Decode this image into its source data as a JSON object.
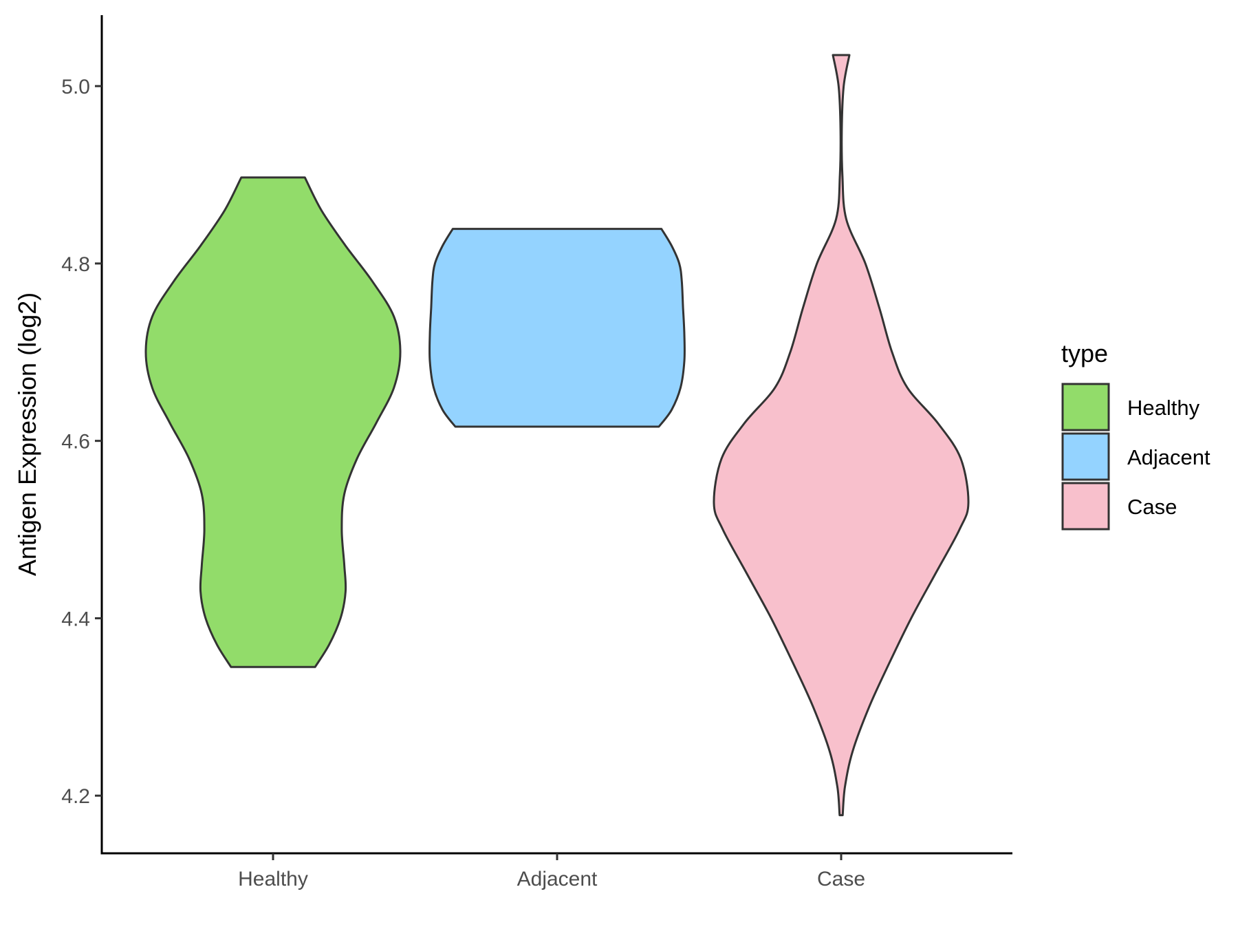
{
  "chart_data": {
    "type": "violin",
    "ylabel": "Antigen Expression (log2)",
    "xlabel": "",
    "categories": [
      "Healthy",
      "Adjacent",
      "Case"
    ],
    "ylim": [
      4.135,
      5.08
    ],
    "yticks": [
      "4.2",
      "4.4",
      "4.6",
      "4.8",
      "5.0"
    ],
    "legend": {
      "title": "type",
      "position": "right",
      "entries": [
        {
          "label": "Healthy",
          "color": "#92dc6a"
        },
        {
          "label": "Adjacent",
          "color": "#94d3ff"
        },
        {
          "label": "Case",
          "color": "#f8c0cc"
        }
      ]
    },
    "series": [
      {
        "category": "Healthy",
        "color": "#92dc6a",
        "min": 4.345,
        "max": 4.897,
        "profile": [
          [
            4.345,
            0.33
          ],
          [
            4.37,
            0.44
          ],
          [
            4.4,
            0.53
          ],
          [
            4.43,
            0.57
          ],
          [
            4.46,
            0.56
          ],
          [
            4.5,
            0.54
          ],
          [
            4.54,
            0.56
          ],
          [
            4.58,
            0.66
          ],
          [
            4.62,
            0.81
          ],
          [
            4.66,
            0.95
          ],
          [
            4.7,
            1.0
          ],
          [
            4.74,
            0.95
          ],
          [
            4.78,
            0.78
          ],
          [
            4.82,
            0.57
          ],
          [
            4.86,
            0.38
          ],
          [
            4.897,
            0.25
          ]
        ]
      },
      {
        "category": "Adjacent",
        "color": "#94d3ff",
        "min": 4.616,
        "max": 4.839,
        "profile": [
          [
            4.616,
            0.8
          ],
          [
            4.635,
            0.9
          ],
          [
            4.66,
            0.97
          ],
          [
            4.69,
            1.0
          ],
          [
            4.72,
            1.0
          ],
          [
            4.75,
            0.99
          ],
          [
            4.78,
            0.98
          ],
          [
            4.8,
            0.96
          ],
          [
            4.82,
            0.9
          ],
          [
            4.839,
            0.82
          ]
        ]
      },
      {
        "category": "Case",
        "color": "#f8c0cc",
        "min": 4.178,
        "max": 5.035,
        "profile": [
          [
            4.178,
            0.012
          ],
          [
            4.21,
            0.03
          ],
          [
            4.25,
            0.09
          ],
          [
            4.3,
            0.22
          ],
          [
            4.35,
            0.38
          ],
          [
            4.4,
            0.55
          ],
          [
            4.45,
            0.74
          ],
          [
            4.5,
            0.93
          ],
          [
            4.53,
            1.0
          ],
          [
            4.58,
            0.94
          ],
          [
            4.62,
            0.76
          ],
          [
            4.66,
            0.52
          ],
          [
            4.7,
            0.4
          ],
          [
            4.75,
            0.3
          ],
          [
            4.8,
            0.19
          ],
          [
            4.85,
            0.04
          ],
          [
            4.9,
            0.01
          ],
          [
            4.95,
            0.005
          ],
          [
            5.0,
            0.02
          ],
          [
            5.035,
            0.065
          ]
        ]
      }
    ]
  }
}
